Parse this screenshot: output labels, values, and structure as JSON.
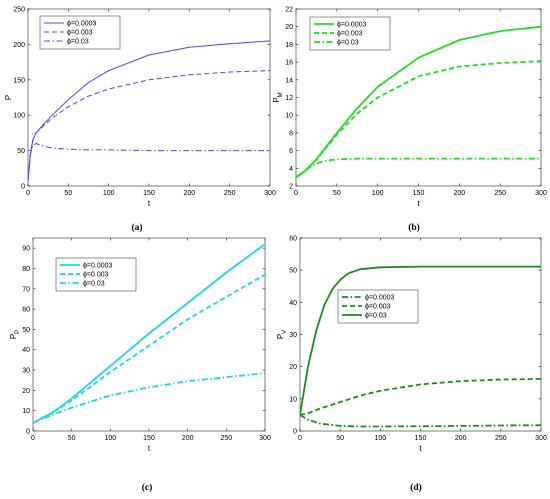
{
  "chart_data": [
    {
      "type": "line",
      "panel_label": "(a)",
      "xlabel": "t",
      "ylabel": "P",
      "ylabel_sub": "",
      "xlim": [
        0,
        300
      ],
      "ylim": [
        0,
        250
      ],
      "xticks": [
        0,
        50,
        100,
        150,
        200,
        250,
        300
      ],
      "yticks": [
        0,
        50,
        100,
        150,
        200,
        250
      ],
      "legend_loc": "top-left",
      "series": [
        {
          "name": "ϕ=0.0003",
          "color": "#4a4af0",
          "style": "solid",
          "width": 1,
          "x": [
            0,
            3,
            6,
            10,
            20,
            30,
            50,
            75,
            100,
            150,
            200,
            250,
            300
          ],
          "y": [
            7,
            45,
            65,
            75,
            88,
            100,
            122,
            146,
            163,
            185,
            196,
            201,
            205
          ]
        },
        {
          "name": "ϕ=0.003",
          "color": "#4a4af0",
          "style": "dashed",
          "width": 1,
          "x": [
            0,
            3,
            6,
            10,
            20,
            30,
            50,
            75,
            100,
            150,
            200,
            250,
            300
          ],
          "y": [
            7,
            45,
            65,
            75,
            86,
            96,
            112,
            127,
            137,
            150,
            157,
            161,
            163
          ]
        },
        {
          "name": "ϕ=0.03",
          "color": "#4a4af0",
          "style": "dashdot",
          "width": 1,
          "x": [
            0,
            3,
            6,
            10,
            15,
            20,
            30,
            50,
            75,
            100,
            150,
            200,
            250,
            300
          ],
          "y": [
            7,
            45,
            57,
            60,
            58,
            56,
            54,
            52,
            51,
            51,
            50,
            50,
            50,
            50
          ]
        }
      ]
    },
    {
      "type": "line",
      "panel_label": "(b)",
      "xlabel": "t",
      "ylabel": "P",
      "ylabel_sub": "M",
      "xlim": [
        0,
        300
      ],
      "ylim": [
        2,
        22
      ],
      "xticks": [
        0,
        50,
        100,
        150,
        200,
        250,
        300
      ],
      "yticks": [
        2,
        4,
        6,
        8,
        10,
        12,
        14,
        16,
        18,
        20,
        22
      ],
      "legend_loc": "top-left",
      "series": [
        {
          "name": "ϕ=0.0003",
          "color": "#22dd22",
          "style": "solid",
          "width": 1.8,
          "x": [
            0,
            10,
            25,
            50,
            75,
            100,
            150,
            200,
            250,
            300
          ],
          "y": [
            3,
            3.6,
            5,
            8,
            10.8,
            13.2,
            16.5,
            18.5,
            19.5,
            20
          ]
        },
        {
          "name": "ϕ=0.003",
          "color": "#22dd22",
          "style": "dashed",
          "width": 1.8,
          "x": [
            0,
            10,
            25,
            50,
            75,
            100,
            150,
            200,
            250,
            300
          ],
          "y": [
            3,
            3.6,
            5,
            7.8,
            10.2,
            12,
            14.4,
            15.5,
            15.9,
            16.1
          ]
        },
        {
          "name": "ϕ=0.03",
          "color": "#22dd22",
          "style": "dashdot",
          "width": 1.8,
          "x": [
            0,
            10,
            20,
            30,
            40,
            50,
            60,
            75,
            100,
            150,
            200,
            250,
            300
          ],
          "y": [
            3,
            3.7,
            4.3,
            4.7,
            4.9,
            5,
            5.05,
            5.1,
            5.1,
            5.1,
            5.1,
            5.1,
            5.1
          ]
        }
      ]
    },
    {
      "type": "line",
      "panel_label": "(c)",
      "xlabel": "t",
      "ylabel": "P",
      "ylabel_sub": "P",
      "xlim": [
        0,
        300
      ],
      "ylim": [
        0,
        95
      ],
      "xticks": [
        0,
        50,
        100,
        150,
        200,
        250,
        300
      ],
      "yticks": [
        0,
        10,
        20,
        30,
        40,
        50,
        60,
        70,
        80,
        90
      ],
      "legend_loc": "top-left",
      "series": [
        {
          "name": "ϕ=0.0003",
          "color": "#22d4e8",
          "style": "solid",
          "width": 1.8,
          "x": [
            0,
            25,
            50,
            75,
            100,
            150,
            200,
            250,
            300
          ],
          "y": [
            4,
            9,
            16,
            24,
            32,
            48,
            63,
            78,
            92
          ]
        },
        {
          "name": "ϕ=0.003",
          "color": "#22d4e8",
          "style": "dashed",
          "width": 1.8,
          "x": [
            0,
            25,
            50,
            75,
            100,
            150,
            200,
            250,
            300
          ],
          "y": [
            4,
            9,
            15,
            22,
            29,
            42,
            55,
            66,
            77
          ]
        },
        {
          "name": "ϕ=0.03",
          "color": "#22d4e8",
          "style": "dashdot",
          "width": 1.8,
          "x": [
            0,
            25,
            50,
            75,
            100,
            150,
            200,
            250,
            300
          ],
          "y": [
            4,
            8,
            11.5,
            14.5,
            17.5,
            21.5,
            24.5,
            26.5,
            28.5
          ]
        }
      ]
    },
    {
      "type": "line",
      "panel_label": "(d)",
      "xlabel": "t",
      "ylabel": "P",
      "ylabel_sub": "V",
      "xlim": [
        0,
        300
      ],
      "ylim": [
        0,
        60
      ],
      "xticks": [
        0,
        50,
        100,
        150,
        200,
        250,
        300
      ],
      "yticks": [
        0,
        10,
        20,
        30,
        40,
        50,
        60
      ],
      "legend_loc": "center",
      "series": [
        {
          "name": "ϕ=0.0003",
          "color": "#1f8a1f",
          "style": "dashdot",
          "width": 1.8,
          "x": [
            0,
            10,
            25,
            50,
            75,
            100,
            150,
            200,
            250,
            300
          ],
          "y": [
            5,
            3.5,
            2.3,
            1.6,
            1.4,
            1.4,
            1.5,
            1.6,
            1.7,
            1.8
          ]
        },
        {
          "name": "ϕ=0.003",
          "color": "#1f8a1f",
          "style": "dashed",
          "width": 1.8,
          "x": [
            0,
            10,
            25,
            50,
            75,
            100,
            150,
            200,
            250,
            300
          ],
          "y": [
            5,
            5.5,
            7,
            9,
            11,
            12.5,
            14.5,
            15.5,
            16,
            16.2
          ]
        },
        {
          "name": "ϕ=0.03",
          "color": "#1f8a1f",
          "style": "solid",
          "width": 1.8,
          "x": [
            0,
            10,
            20,
            30,
            40,
            50,
            60,
            75,
            100,
            150,
            200,
            250,
            300
          ],
          "y": [
            5,
            20,
            31,
            39,
            44,
            47,
            49,
            50.3,
            50.9,
            51.1,
            51.1,
            51.1,
            51.1
          ]
        }
      ]
    }
  ]
}
